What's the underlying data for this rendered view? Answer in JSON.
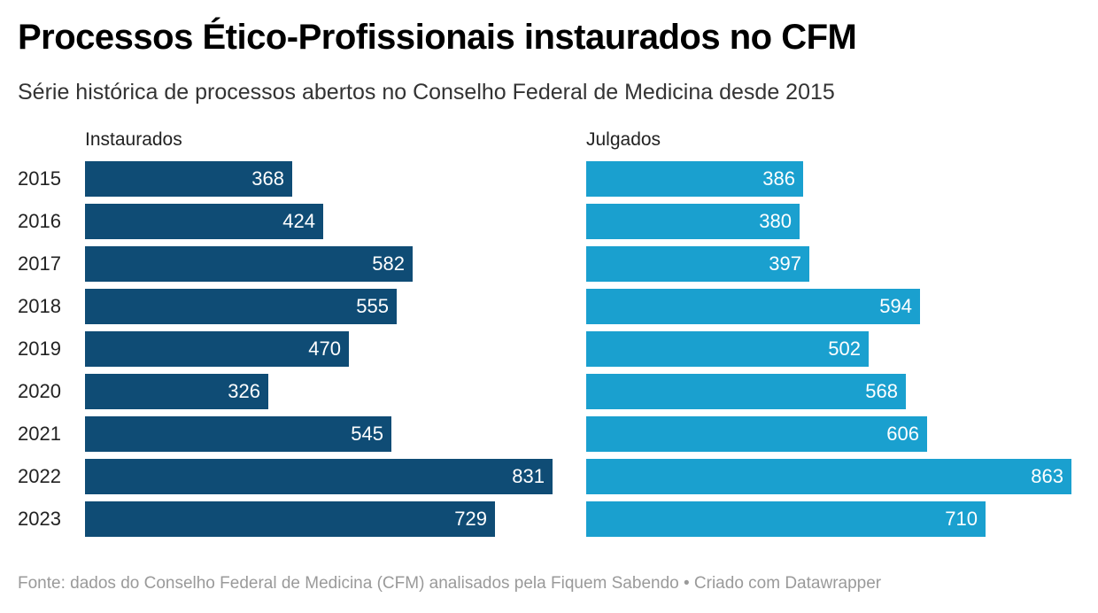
{
  "title": "Processos Ético-Profissionais instaurados no CFM",
  "subtitle": "Série histórica de processos abertos no Conselho Federal de Medicina desde 2015",
  "footer": "Fonte: dados do Conselho Federal de Medicina (CFM) analisados pela Fiquem Sabendo • Criado com Datawrapper",
  "colors": {
    "instaurados": "#0f4c75",
    "julgados": "#1aa0cf"
  },
  "chart_data": {
    "type": "bar",
    "orientation": "horizontal",
    "layout": "split-bars",
    "categories": [
      "2015",
      "2016",
      "2017",
      "2018",
      "2019",
      "2020",
      "2021",
      "2022",
      "2023"
    ],
    "series": [
      {
        "name": "Instaurados",
        "values": [
          368,
          424,
          582,
          555,
          470,
          326,
          545,
          831,
          729
        ]
      },
      {
        "name": "Julgados",
        "values": [
          386,
          380,
          397,
          594,
          502,
          568,
          606,
          863,
          710
        ]
      }
    ],
    "xlim": [
      0,
      863
    ],
    "data_labels": "inside-end",
    "grid": false
  }
}
